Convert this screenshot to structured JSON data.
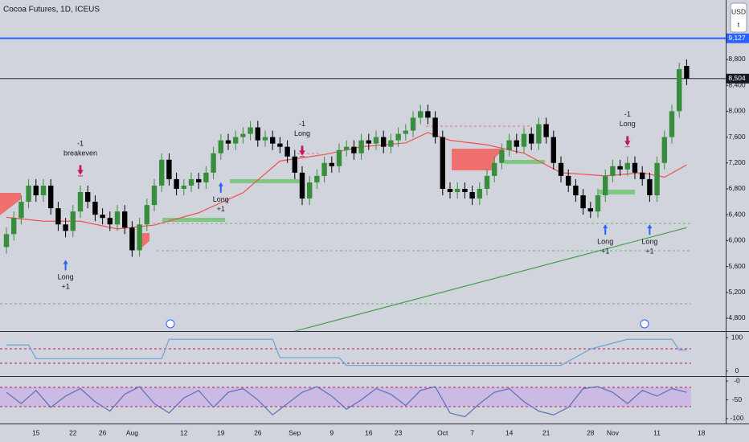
{
  "header": {
    "title": "Cocoa Futures, 1D, ICEUS",
    "currency": "USD",
    "unit_button": "t"
  },
  "chart_data": [
    {
      "type": "candlestick",
      "categories": [
        null,
        null,
        null,
        null,
        "15",
        null,
        null,
        null,
        null,
        "22",
        null,
        null,
        null,
        "26",
        null,
        null,
        null,
        "Aug",
        null,
        null,
        null,
        null,
        null,
        null,
        "12",
        null,
        null,
        null,
        null,
        "19",
        null,
        null,
        null,
        null,
        "26",
        null,
        null,
        null,
        null,
        "Sep",
        null,
        null,
        null,
        null,
        "9",
        null,
        null,
        null,
        null,
        "16",
        null,
        null,
        null,
        "23",
        null,
        null,
        null,
        null,
        null,
        "Oct",
        null,
        null,
        null,
        "7",
        null,
        null,
        null,
        null,
        "14",
        null,
        null,
        null,
        null,
        "21",
        null,
        null,
        null,
        null,
        null,
        "28",
        null,
        null,
        "Nov",
        null,
        null,
        null,
        null,
        null,
        "11",
        null,
        null,
        null,
        null,
        null,
        "18"
      ],
      "open": [
        5900,
        6100,
        6350,
        6600,
        6850,
        6700,
        6850,
        6500,
        6250,
        6150,
        6450,
        6750,
        6600,
        6400,
        6350,
        6250,
        6450,
        6200,
        5850,
        6250,
        6550,
        6850,
        7250,
        6950,
        6800,
        6850,
        6950,
        6900,
        7050,
        7350,
        7550,
        7500,
        7600,
        7650,
        7750,
        7550,
        7600,
        7500,
        7450,
        7300,
        7050,
        6650,
        6900,
        7000,
        7200,
        7150,
        7400,
        7450,
        7350,
        7550,
        7500,
        7600,
        7450,
        7550,
        7650,
        7700,
        7900,
        8000,
        7900,
        7600,
        6800,
        6750,
        6800,
        6750,
        6650,
        6800,
        7000,
        7200,
        7400,
        7550,
        7450,
        7650,
        7500,
        7800,
        7600,
        7200,
        7000,
        6850,
        6700,
        6500,
        6450,
        6700,
        7000,
        7150,
        7100,
        7200,
        7050,
        6950,
        6700,
        7200,
        7600,
        8000,
        8700,
        null,
        null
      ],
      "high": [
        6200,
        6450,
        6700,
        6950,
        6950,
        6950,
        6950,
        6600,
        6350,
        6550,
        6850,
        6850,
        6700,
        6500,
        6450,
        6550,
        6550,
        6300,
        6350,
        6650,
        6950,
        7350,
        7350,
        7050,
        6950,
        7050,
        7050,
        7150,
        7450,
        7650,
        7650,
        7700,
        7750,
        7850,
        7850,
        7700,
        7700,
        7600,
        7550,
        7400,
        7150,
        7000,
        7100,
        7300,
        7300,
        7500,
        7550,
        7550,
        7650,
        7650,
        7700,
        7700,
        7650,
        7750,
        7800,
        8000,
        8100,
        8100,
        8000,
        7700,
        6900,
        6900,
        6900,
        6850,
        6900,
        7100,
        7300,
        7500,
        7650,
        7650,
        7750,
        7750,
        7900,
        7900,
        7700,
        7300,
        7100,
        6950,
        6800,
        6600,
        6800,
        7100,
        7250,
        7250,
        7300,
        7300,
        7150,
        7050,
        7300,
        7700,
        8100,
        8750,
        8800,
        null,
        null
      ],
      "low": [
        5800,
        6000,
        6250,
        6500,
        6600,
        6600,
        6400,
        6150,
        6050,
        6050,
        6350,
        6500,
        6300,
        6250,
        6150,
        6150,
        6100,
        5750,
        5750,
        6150,
        6450,
        6750,
        6850,
        6700,
        6700,
        6750,
        6800,
        6800,
        6950,
        7250,
        7400,
        7400,
        7500,
        7550,
        7450,
        7450,
        7400,
        7350,
        7200,
        6950,
        6550,
        6550,
        6800,
        6900,
        7050,
        7050,
        7300,
        7250,
        7250,
        7400,
        7400,
        7350,
        7350,
        7450,
        7550,
        7600,
        7800,
        7800,
        7500,
        6700,
        6650,
        6650,
        6650,
        6550,
        6550,
        6700,
        6900,
        7100,
        7300,
        7350,
        7350,
        7400,
        7400,
        7500,
        7100,
        6900,
        6750,
        6600,
        6400,
        6350,
        6350,
        6600,
        6900,
        7000,
        7000,
        6950,
        6850,
        6600,
        6600,
        7100,
        7500,
        7900,
        8404,
        null,
        null
      ],
      "close": [
        6100,
        6350,
        6600,
        6850,
        6700,
        6850,
        6500,
        6250,
        6150,
        6450,
        6750,
        6600,
        6400,
        6350,
        6250,
        6450,
        6200,
        5850,
        6250,
        6550,
        6850,
        7250,
        6950,
        6800,
        6850,
        6950,
        6900,
        7050,
        7350,
        7550,
        7500,
        7600,
        7650,
        7750,
        7550,
        7600,
        7500,
        7450,
        7300,
        7050,
        6650,
        6900,
        7000,
        7200,
        7150,
        7400,
        7450,
        7350,
        7550,
        7500,
        7600,
        7450,
        7550,
        7650,
        7700,
        7900,
        8000,
        7900,
        7600,
        6800,
        6750,
        6800,
        6750,
        6650,
        6800,
        7000,
        7200,
        7400,
        7550,
        7450,
        7650,
        7500,
        7800,
        7600,
        7200,
        7000,
        6850,
        6700,
        6500,
        6450,
        6700,
        7000,
        7150,
        7100,
        7200,
        7050,
        6950,
        6700,
        7200,
        7600,
        8000,
        8650,
        8504,
        null,
        null
      ],
      "up_color": "#388e3c",
      "down_color": "#000000",
      "ylim": [
        4601,
        9719
      ],
      "yticks": [
        {
          "value": 4800,
          "label": "4,800"
        },
        {
          "value": 5200,
          "label": "5,200"
        },
        {
          "value": 5600,
          "label": "5,600"
        },
        {
          "value": 6000,
          "label": "6,000"
        },
        {
          "value": 6400,
          "label": "6,400"
        },
        {
          "value": 6800,
          "label": "6,800"
        },
        {
          "value": 7200,
          "label": "7,200"
        },
        {
          "value": 7600,
          "label": "7,600"
        },
        {
          "value": 8000,
          "label": "8,000"
        },
        {
          "value": 8400,
          "label": "8,400"
        },
        {
          "value": 8800,
          "label": "8,800"
        }
      ],
      "price_lines": [
        {
          "value": 9127,
          "label": "9,127",
          "color": "#2962ff"
        },
        {
          "value": 8504,
          "label": "8,504",
          "color": "#131722"
        }
      ],
      "lines": [
        {
          "color": "#ef5350",
          "x": [
            0,
            5,
            10,
            15,
            20,
            26,
            32,
            37,
            43,
            48,
            54,
            57,
            60,
            65,
            70,
            75,
            81,
            86,
            89,
            92
          ],
          "values": [
            6360,
            6300,
            6300,
            6180,
            6240,
            6430,
            6740,
            7230,
            7330,
            7450,
            7510,
            7670,
            7550,
            7480,
            7350,
            7050,
            7000,
            7050,
            6980,
            7170
          ]
        },
        {
          "color": "#43a047",
          "x": [
            39,
            92
          ],
          "values": [
            4600,
            6200
          ]
        }
      ],
      "signals": [
        {
          "x": 8,
          "side": "below",
          "lines": [
            "Long",
            "+1"
          ]
        },
        {
          "x": 29,
          "side": "below",
          "lines": [
            "Long",
            "+1"
          ]
        },
        {
          "x": 81,
          "side": "below",
          "lines": [
            "Long",
            "+1"
          ]
        },
        {
          "x": 87,
          "side": "below",
          "lines": [
            "Long",
            "+1"
          ]
        },
        {
          "x": 10,
          "side": "above",
          "lines": [
            "-1",
            "breakeven"
          ]
        },
        {
          "x": 40,
          "side": "above",
          "lines": [
            "-1",
            "Long"
          ]
        },
        {
          "x": 84,
          "side": "above",
          "lines": [
            "-1",
            "Long"
          ]
        }
      ]
    },
    {
      "type": "line",
      "color": "#64a5d8",
      "ylim": [
        -15,
        117
      ],
      "yticks": [
        100,
        0
      ],
      "x": [
        0,
        3,
        4,
        21,
        22,
        36,
        37,
        45,
        46,
        75,
        79,
        84,
        90,
        91,
        92
      ],
      "values": [
        78,
        78,
        37,
        37,
        95,
        95,
        40,
        40,
        17,
        17,
        66,
        95,
        95,
        63,
        63
      ]
    },
    {
      "type": "line",
      "color": "#5b6fb5",
      "ylim": [
        -113,
        11
      ],
      "yticks": [
        {
          "value": 0,
          "label": "-0"
        },
        -50,
        -100
      ],
      "x": [
        0,
        2,
        4,
        6,
        8,
        10,
        12,
        14,
        16,
        18,
        20,
        22,
        24,
        26,
        28,
        30,
        32,
        34,
        36,
        38,
        40,
        42,
        44,
        46,
        48,
        50,
        52,
        54,
        56,
        58,
        60,
        62,
        64,
        66,
        68,
        70,
        72,
        74,
        76,
        78,
        80,
        82,
        84,
        86,
        88,
        90,
        92
      ],
      "values": [
        -30,
        -60,
        -25,
        -70,
        -40,
        -20,
        -55,
        -80,
        -35,
        -15,
        -60,
        -85,
        -45,
        -25,
        -70,
        -30,
        -20,
        -50,
        -90,
        -60,
        -30,
        -15,
        -40,
        -75,
        -50,
        -20,
        -35,
        -65,
        -25,
        -15,
        -85,
        -95,
        -60,
        -30,
        -20,
        -55,
        -80,
        -90,
        -70,
        -20,
        -15,
        -30,
        -60,
        -25,
        -40,
        -20,
        -30
      ]
    }
  ]
}
